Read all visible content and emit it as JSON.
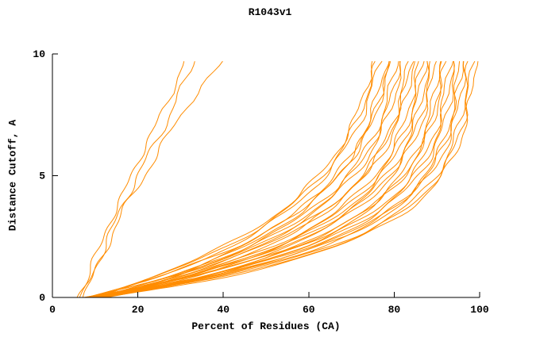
{
  "chart_data": {
    "type": "line",
    "title": "R1043v1",
    "xlabel": "Percent of Residues (CA)",
    "ylabel": "Distance Cutoff, A",
    "xlim": [
      0,
      100
    ],
    "ylim": [
      0,
      10
    ],
    "xticks": [
      0,
      20,
      40,
      60,
      80,
      100
    ],
    "yticks": [
      0,
      5,
      10
    ],
    "grid": false,
    "legend_position": "none",
    "line_color": "#ff8c00",
    "axis_color": "#000000",
    "background_color": "#ffffff",
    "y_grid": [
      0,
      0.5,
      1,
      2,
      3,
      4,
      5,
      6,
      7.5,
      9.7
    ],
    "curves_x": [
      [
        8,
        17.4,
        25.6,
        38.9,
        48.9,
        56.5,
        62.2,
        66.6,
        71.2,
        75.2
      ],
      [
        9,
        18.4,
        26.5,
        39.7,
        49.7,
        57.3,
        63.0,
        67.3,
        71.9,
        76.0
      ],
      [
        10,
        19.3,
        27.4,
        40.6,
        50.6,
        58.1,
        63.8,
        68.1,
        72.7,
        76.7
      ],
      [
        11,
        20.9,
        29.4,
        43.1,
        53.2,
        60.7,
        66.2,
        70.4,
        74.6,
        78.2
      ],
      [
        12,
        21.9,
        30.4,
        43.9,
        54.0,
        61.5,
        67.0,
        71.1,
        75.3,
        78.9
      ],
      [
        8,
        18.5,
        27.5,
        42.0,
        52.7,
        60.7,
        66.6,
        70.9,
        75.5,
        79.3
      ],
      [
        9,
        20.1,
        29.6,
        44.5,
        55.3,
        63.2,
        68.9,
        73.1,
        77.3,
        80.7
      ],
      [
        10,
        21.1,
        30.5,
        45.4,
        56.2,
        64.0,
        69.7,
        73.8,
        78.0,
        81.4
      ],
      [
        11,
        22.0,
        31.4,
        46.2,
        57.0,
        64.8,
        70.5,
        74.6,
        78.7,
        82.2
      ],
      [
        12,
        23.6,
        33.4,
        48.6,
        59.4,
        67.2,
        72.6,
        76.6,
        80.4,
        83.5
      ],
      [
        8,
        20.3,
        30.7,
        46.9,
        58.4,
        66.6,
        72.5,
        76.6,
        80.7,
        84.0
      ],
      [
        9,
        21.3,
        31.7,
        47.8,
        59.3,
        67.4,
        73.2,
        77.4,
        81.5,
        84.7
      ],
      [
        10,
        22.9,
        33.7,
        50.2,
        61.7,
        69.7,
        75.4,
        79.3,
        83.0,
        85.9
      ],
      [
        11,
        23.8,
        34.6,
        51.0,
        62.5,
        70.5,
        76.1,
        80.0,
        83.8,
        86.6
      ],
      [
        12,
        24.8,
        35.5,
        51.9,
        63.3,
        71.3,
        76.9,
        80.7,
        84.5,
        87.3
      ],
      [
        8,
        22.2,
        34.0,
        51.8,
        64.0,
        72.3,
        78.0,
        81.9,
        85.5,
        88.2
      ],
      [
        9,
        23.2,
        34.9,
        52.6,
        64.8,
        73.1,
        78.7,
        82.6,
        86.3,
        89.0
      ],
      [
        10,
        24.1,
        35.8,
        53.5,
        65.6,
        73.8,
        79.5,
        83.3,
        87.0,
        89.7
      ],
      [
        11,
        25.8,
        37.8,
        55.8,
        67.9,
        76.0,
        81.4,
        85.0,
        88.4,
        90.7
      ],
      [
        12,
        26.7,
        38.7,
        56.7,
        68.7,
        76.7,
        82.1,
        85.7,
        89.1,
        91.4
      ],
      [
        8,
        23.6,
        36.3,
        55.2,
        68.0,
        76.5,
        82.2,
        86.0,
        89.5,
        92.0
      ],
      [
        9,
        25.2,
        38.3,
        57.6,
        70.2,
        78.6,
        84.0,
        87.6,
        90.8,
        93.0
      ],
      [
        10,
        26.1,
        39.2,
        58.4,
        71.0,
        79.3,
        84.8,
        88.3,
        91.5,
        93.8
      ],
      [
        11,
        27.1,
        40.1,
        59.2,
        71.8,
        80.1,
        85.5,
        89.1,
        92.3,
        94.5
      ],
      [
        12,
        28.7,
        42.1,
        61.5,
        74.0,
        82.0,
        87.2,
        90.6,
        93.5,
        95.4
      ],
      [
        8,
        25.6,
        39.8,
        60.2,
        73.4,
        81.9,
        87.3,
        90.8,
        93.9,
        96.0
      ],
      [
        9,
        26.6,
        40.7,
        61.0,
        74.2,
        82.6,
        88.1,
        91.6,
        94.6,
        96.7
      ],
      [
        10,
        28.2,
        42.7,
        63.3,
        76.3,
        84.5,
        89.7,
        93.0,
        95.8,
        97.6
      ],
      [
        11,
        29.1,
        43.6,
        64.1,
        77.1,
        85.3,
        90.4,
        93.7,
        96.5,
        98.3
      ],
      [
        12,
        30.1,
        44.4,
        64.9,
        77.9,
        86.0,
        91.2,
        94.4,
        97.2,
        99.0
      ],
      [
        6,
        7.5,
        8.5,
        11,
        13,
        16,
        18.5,
        21,
        25.5,
        31
      ],
      [
        7,
        8.5,
        10,
        12.5,
        15,
        18,
        21.5,
        25,
        30,
        40
      ],
      [
        6.5,
        8,
        9.5,
        12,
        14.5,
        17,
        20,
        23,
        27.5,
        33
      ]
    ]
  }
}
